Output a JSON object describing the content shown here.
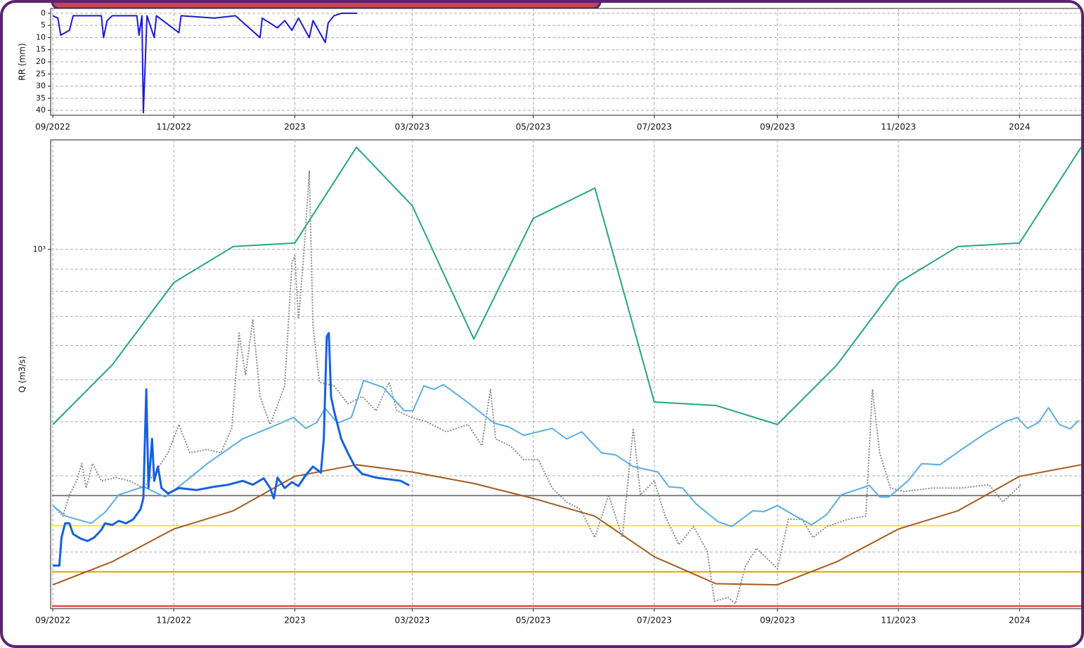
{
  "chart_data": [
    {
      "type": "line",
      "y_label": "RR (mm)",
      "xlim": [
        2022.663,
        2024.089
      ],
      "ylim": [
        42,
        -2
      ],
      "xticks": [
        {
          "value": 2022.666,
          "label": "09/2022"
        },
        {
          "value": 2022.833,
          "label": "11/2022"
        },
        {
          "value": 2023.0,
          "label": "2023"
        },
        {
          "value": 2023.162,
          "label": "03/2023"
        },
        {
          "value": 2023.329,
          "label": "05/2023"
        },
        {
          "value": 2023.496,
          "label": "07/2023"
        },
        {
          "value": 2023.666,
          "label": "09/2023"
        },
        {
          "value": 2023.833,
          "label": "11/2023"
        },
        {
          "value": 2024.0,
          "label": "2024"
        }
      ],
      "yticks": [
        0,
        5,
        10,
        15,
        20,
        25,
        30,
        35,
        40
      ],
      "grid": true,
      "series": [
        {
          "color": "#1a1ad6",
          "x": [
            2022.666,
            2022.673,
            2022.677,
            2022.689,
            2022.694,
            2022.733,
            2022.736,
            2022.741,
            2022.748,
            2022.782,
            2022.785,
            2022.789,
            2022.791,
            2022.796,
            2022.806,
            2022.809,
            2022.84,
            2022.843,
            2022.889,
            2022.918,
            2022.952,
            2022.955,
            2022.976,
            2022.986,
            2022.996,
            2023.005,
            2023.02,
            2023.025,
            2023.042,
            2023.046,
            2023.054,
            2023.064,
            2023.086
          ],
          "values": [
            1,
            2,
            9,
            7,
            1,
            1,
            10,
            3,
            1,
            1,
            9,
            1,
            41,
            1,
            10,
            1,
            8,
            1,
            2,
            1,
            10,
            2,
            6,
            3,
            7,
            2,
            10,
            3,
            12,
            4,
            1,
            0,
            0
          ]
        }
      ]
    },
    {
      "type": "line",
      "y_label": "Q (m3/s)",
      "log_y": true,
      "xlim": [
        2022.663,
        2024.089
      ],
      "ylim": [
        148,
        1790
      ],
      "xticks": [
        {
          "value": 2022.666,
          "label": "09/2022"
        },
        {
          "value": 2022.833,
          "label": "11/2022"
        },
        {
          "value": 2023.0,
          "label": "2023"
        },
        {
          "value": 2023.162,
          "label": "03/2023"
        },
        {
          "value": 2023.329,
          "label": "05/2023"
        },
        {
          "value": 2023.496,
          "label": "07/2023"
        },
        {
          "value": 2023.666,
          "label": "09/2023"
        },
        {
          "value": 2023.833,
          "label": "11/2023"
        },
        {
          "value": 2024.0,
          "label": "2024"
        }
      ],
      "yticks": [
        {
          "value": 1000,
          "label": "10³"
        }
      ],
      "minor_yticks": [
        200,
        300,
        400,
        500,
        600,
        700,
        800,
        900
      ],
      "grid": true,
      "hlines": [
        {
          "value": 270,
          "color": "#808080"
        },
        {
          "value": 230,
          "color": "#f5f01a"
        },
        {
          "value": 180,
          "color": "#d9a010"
        },
        {
          "value": 150,
          "color": "#e02020"
        }
      ],
      "series": [
        {
          "color": "#25a682",
          "x": [
            2022.666,
            2022.748,
            2022.833,
            2022.915,
            2023.0,
            2023.085,
            2023.162,
            2023.247,
            2023.329,
            2023.414,
            2023.496,
            2023.581,
            2023.666,
            2023.748,
            2023.833,
            2023.915,
            2024.0,
            2024.085
          ],
          "values": [
            394,
            541,
            838,
            1015,
            1034,
            1721,
            1261,
            621,
            1179,
            1385,
            444,
            436,
            394,
            541,
            838,
            1015,
            1034,
            1721
          ]
        },
        {
          "color": "#a65a1e",
          "x": [
            2022.666,
            2022.748,
            2022.833,
            2022.915,
            2023.0,
            2023.085,
            2023.162,
            2023.247,
            2023.329,
            2023.414,
            2023.496,
            2023.581,
            2023.666,
            2023.748,
            2023.833,
            2023.915,
            2024.0,
            2024.085
          ],
          "values": [
            168,
            190,
            226,
            249,
            299,
            318,
            306,
            288,
            266,
            242,
            195,
            169,
            168,
            190,
            226,
            249,
            299,
            318
          ]
        },
        {
          "color": "#8a8a8a",
          "dashed": true,
          "x": [
            2022.666,
            2022.68,
            2022.689,
            2022.699,
            2022.706,
            2022.712,
            2022.721,
            2022.733,
            2022.753,
            2022.772,
            2022.791,
            2022.806,
            2022.825,
            2022.84,
            2022.855,
            2022.879,
            2022.898,
            2022.913,
            2022.923,
            2022.932,
            2022.942,
            2022.952,
            2022.966,
            2022.986,
            2022.996,
            2023.0,
            2023.005,
            2023.013,
            2023.02,
            2023.025,
            2023.034,
            2023.054,
            2023.073,
            2023.093,
            2023.112,
            2023.13,
            2023.141,
            2023.161,
            2023.18,
            2023.209,
            2023.239,
            2023.258,
            2023.27,
            2023.277,
            2023.297,
            2023.316,
            2023.336,
            2023.355,
            2023.375,
            2023.394,
            2023.414,
            2023.433,
            2023.452,
            2023.467,
            2023.477,
            2023.496,
            2023.511,
            2023.53,
            2023.55,
            2023.569,
            2023.579,
            2023.598,
            2023.608,
            2023.622,
            2023.637,
            2023.652,
            2023.666,
            2023.681,
            2023.7,
            2023.715,
            2023.734,
            2023.763,
            2023.788,
            2023.797,
            2023.807,
            2023.822,
            2023.841,
            2023.88,
            2023.919,
            2023.958,
            2023.977,
            2024.002
          ],
          "values": [
            256,
            242,
            271,
            292,
            320,
            281,
            320,
            292,
            297,
            292,
            281,
            303,
            339,
            394,
            339,
            345,
            339,
            386,
            641,
            512,
            690,
            457,
            394,
            484,
            931,
            967,
            690,
            1004,
            1515,
            665,
            493,
            484,
            440,
            457,
            424,
            493,
            424,
            409,
            401,
            379,
            394,
            352,
            475,
            365,
            352,
            327,
            327,
            281,
            261,
            251,
            216,
            271,
            216,
            386,
            271,
            292,
            242,
            208,
            229,
            201,
            154,
            157,
            152,
            186,
            204,
            193,
            183,
            238,
            238,
            216,
            229,
            238,
            242,
            475,
            339,
            281,
            276,
            281,
            281,
            286,
            261,
            286
          ]
        },
        {
          "color": "#5aaee3",
          "x": [
            2022.666,
            2022.684,
            2022.719,
            2022.738,
            2022.757,
            2022.791,
            2022.821,
            2022.85,
            2022.879,
            2022.928,
            2022.976,
            2022.998,
            2023.015,
            2023.03,
            2023.042,
            2023.059,
            2023.078,
            2023.095,
            2023.122,
            2023.151,
            2023.163,
            2023.178,
            2023.192,
            2023.205,
            2023.234,
            2023.275,
            2023.295,
            2023.316,
            2023.355,
            2023.375,
            2023.396,
            2023.423,
            2023.443,
            2023.467,
            2023.501,
            2023.516,
            2023.535,
            2023.554,
            2023.584,
            2023.603,
            2023.632,
            2023.647,
            2023.666,
            2023.691,
            2023.713,
            2023.734,
            2023.754,
            2023.793,
            2023.807,
            2023.82,
            2023.846,
            2023.865,
            2023.89,
            2023.919,
            2023.953,
            2023.982,
            2023.997,
            2024.011,
            2024.026,
            2024.04,
            2024.055,
            2024.07,
            2024.082
          ],
          "values": [
            256,
            242,
            233,
            247,
            271,
            283,
            268,
            292,
            320,
            365,
            394,
            409,
            386,
            398,
            429,
            397,
            409,
            498,
            480,
            424,
            424,
            484,
            475,
            487,
            449,
            397,
            389,
            372,
            386,
            365,
            379,
            339,
            335,
            315,
            306,
            283,
            281,
            258,
            235,
            229,
            249,
            248,
            256,
            242,
            231,
            244,
            271,
            285,
            268,
            268,
            292,
            320,
            318,
            344,
            376,
            401,
            409,
            386,
            398,
            431,
            394,
            385,
            403
          ]
        },
        {
          "color": "#1560e0",
          "width": 3,
          "x": [
            2022.666,
            2022.675,
            2022.678,
            2022.683,
            2022.689,
            2022.694,
            2022.704,
            2022.714,
            2022.723,
            2022.733,
            2022.738,
            2022.748,
            2022.757,
            2022.767,
            2022.777,
            2022.787,
            2022.791,
            2022.795,
            2022.798,
            2022.803,
            2022.806,
            2022.811,
            2022.816,
            2022.825,
            2022.84,
            2022.864,
            2022.889,
            2022.908,
            2022.928,
            2022.942,
            2022.957,
            2022.966,
            2022.971,
            2022.976,
            2022.986,
            2022.996,
            2023.005,
            2023.015,
            2023.025,
            2023.036,
            2023.04,
            2023.044,
            2023.047,
            2023.05,
            2023.054,
            2023.064,
            2023.073,
            2023.083,
            2023.093,
            2023.112,
            2023.132,
            2023.146,
            2023.158
          ],
          "values": [
            186,
            186,
            216,
            233,
            233,
            220,
            215,
            212,
            216,
            225,
            233,
            231,
            236,
            233,
            238,
            251,
            266,
            475,
            281,
            365,
            292,
            315,
            281,
            273,
            281,
            278,
            283,
            286,
            292,
            286,
            296,
            281,
            266,
            297,
            281,
            290,
            284,
            301,
            315,
            305,
            365,
            629,
            641,
            457,
            424,
            365,
            339,
            315,
            303,
            297,
            294,
            292,
            285
          ]
        }
      ]
    }
  ]
}
